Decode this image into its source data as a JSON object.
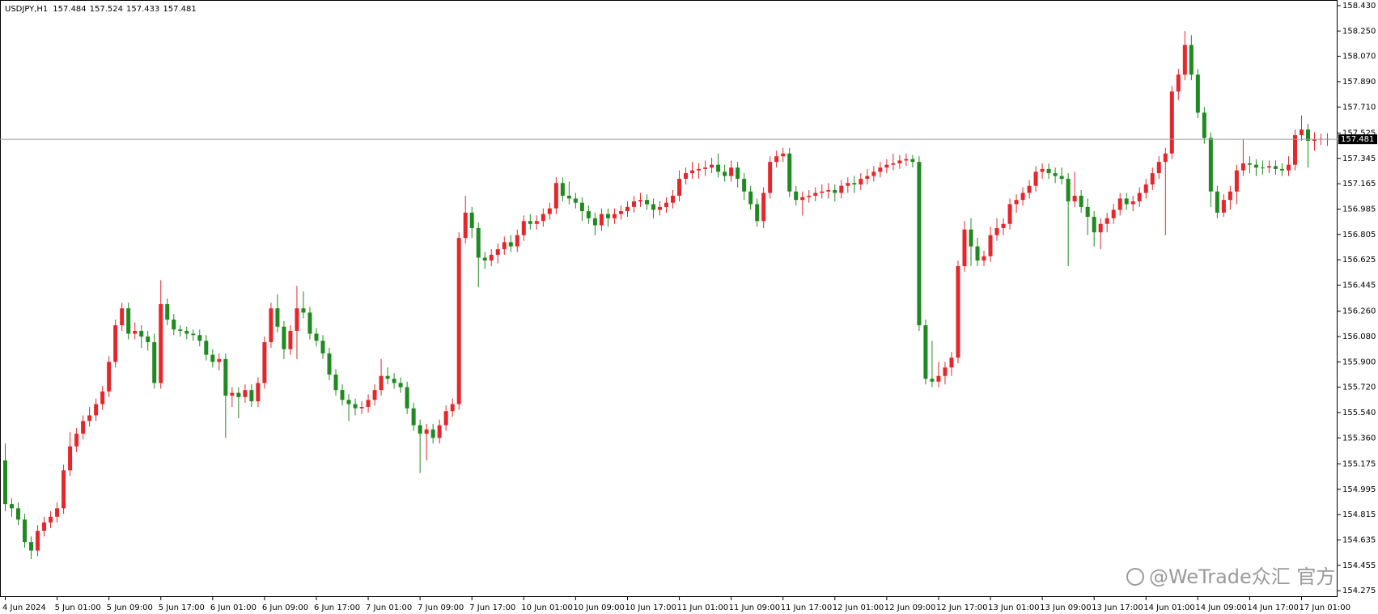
{
  "chart_data": {
    "type": "candlestick",
    "symbol": "USDJPY,H1",
    "watermark": "@WeTrade众汇 官方",
    "categories": [
      "4 Jun 2024",
      null,
      null,
      null,
      null,
      null,
      null,
      null,
      "5 Jun 01:00",
      null,
      null,
      null,
      null,
      null,
      null,
      null,
      "5 Jun 09:00",
      null,
      null,
      null,
      null,
      null,
      null,
      null,
      "5 Jun 17:00",
      null,
      null,
      null,
      null,
      null,
      null,
      null,
      "6 Jun 01:00",
      null,
      null,
      null,
      null,
      null,
      null,
      null,
      "6 Jun 09:00",
      null,
      null,
      null,
      null,
      null,
      null,
      null,
      "6 Jun 17:00",
      null,
      null,
      null,
      null,
      null,
      null,
      null,
      "7 Jun 01:00",
      null,
      null,
      null,
      null,
      null,
      null,
      null,
      "7 Jun 09:00",
      null,
      null,
      null,
      null,
      null,
      null,
      null,
      "7 Jun 17:00",
      null,
      null,
      null,
      null,
      null,
      null,
      null,
      "10 Jun 01:00",
      null,
      null,
      null,
      null,
      null,
      null,
      null,
      "10 Jun 09:00",
      null,
      null,
      null,
      null,
      null,
      null,
      null,
      "10 Jun 17:00",
      null,
      null,
      null,
      null,
      null,
      null,
      null,
      "11 Jun 01:00",
      null,
      null,
      null,
      null,
      null,
      null,
      null,
      "11 Jun 09:00",
      null,
      null,
      null,
      null,
      null,
      null,
      null,
      "11 Jun 17:00",
      null,
      null,
      null,
      null,
      null,
      null,
      null,
      "12 Jun 01:00",
      null,
      null,
      null,
      null,
      null,
      null,
      null,
      "12 Jun 09:00",
      null,
      null,
      null,
      null,
      null,
      null,
      null,
      "12 Jun 17:00",
      null,
      null,
      null,
      null,
      null,
      null,
      null,
      "13 Jun 01:00",
      null,
      null,
      null,
      null,
      null,
      null,
      null,
      "13 Jun 09:00",
      null,
      null,
      null,
      null,
      null,
      null,
      null,
      "13 Jun 17:00",
      null,
      null,
      null,
      null,
      null,
      null,
      null,
      "14 Jun 01:00",
      null,
      null,
      null,
      null,
      null,
      null,
      null,
      "14 Jun 09:00",
      null,
      null,
      null,
      null,
      null,
      null,
      null,
      "14 Jun 17:00",
      null,
      null,
      null,
      null,
      null,
      null,
      null,
      "17 Jun 01:00",
      null,
      null,
      null,
      null
    ],
    "open": [
      155.2,
      154.89,
      154.86,
      154.78,
      154.62,
      154.56,
      154.7,
      154.76,
      154.8,
      154.86,
      155.13,
      155.3,
      155.39,
      155.48,
      155.52,
      155.6,
      155.69,
      155.9,
      156.16,
      156.28,
      156.1,
      156.12,
      156.08,
      156.04,
      155.75,
      156.31,
      156.2,
      156.13,
      156.12,
      156.1,
      156.09,
      156.05,
      155.95,
      155.9,
      155.92,
      155.66,
      155.68,
      155.65,
      155.7,
      155.62,
      155.75,
      156.04,
      156.28,
      156.15,
      155.99,
      156.12,
      156.28,
      156.25,
      156.1,
      156.05,
      155.96,
      155.81,
      155.7,
      155.63,
      155.6,
      155.57,
      155.58,
      155.63,
      155.7,
      155.8,
      155.78,
      155.75,
      155.72,
      155.57,
      155.45,
      155.39,
      155.42,
      155.36,
      155.45,
      155.55,
      155.6,
      156.78,
      156.96,
      156.85,
      156.64,
      156.62,
      156.66,
      156.7,
      156.75,
      156.72,
      156.8,
      156.9,
      156.88,
      156.9,
      156.95,
      156.99,
      157.17,
      157.08,
      157.06,
      157.03,
      156.97,
      156.92,
      156.87,
      156.95,
      156.92,
      156.95,
      156.97,
      157.0,
      157.04,
      157.05,
      157.02,
      156.98,
      157.0,
      157.03,
      157.08,
      157.2,
      157.24,
      157.26,
      157.27,
      157.28,
      157.3,
      157.25,
      157.22,
      157.28,
      157.2,
      157.11,
      157.02,
      156.9,
      157.1,
      157.32,
      157.36,
      157.38,
      157.11,
      157.05,
      157.07,
      157.08,
      157.1,
      157.11,
      157.12,
      157.1,
      157.15,
      157.17,
      157.16,
      157.2,
      157.22,
      157.25,
      157.28,
      157.3,
      157.31,
      157.33,
      157.34,
      157.32,
      156.16,
      155.78,
      155.76,
      155.8,
      155.86,
      155.93,
      156.58,
      156.84,
      156.72,
      156.62,
      156.65,
      156.8,
      156.85,
      156.88,
      157.02,
      157.05,
      157.1,
      157.15,
      157.25,
      157.27,
      157.24,
      157.22,
      157.2,
      157.04,
      157.08,
      157.0,
      156.93,
      156.82,
      156.88,
      156.92,
      156.98,
      157.06,
      157.02,
      157.04,
      157.1,
      157.16,
      157.24,
      157.32,
      157.38,
      157.82,
      157.94,
      158.15,
      157.94,
      157.67,
      157.49,
      157.11,
      156.96,
      157.05,
      157.11,
      157.26,
      157.31,
      157.3,
      157.28,
      157.28,
      157.29,
      157.27,
      157.26,
      157.3,
      157.51,
      157.55,
      157.47,
      157.48,
      157.484
    ],
    "high": [
      155.32,
      154.93,
      154.9,
      154.82,
      154.66,
      154.74,
      154.8,
      154.84,
      154.9,
      155.17,
      155.4,
      155.43,
      155.52,
      155.58,
      155.64,
      155.73,
      155.94,
      156.2,
      156.32,
      156.32,
      156.18,
      156.16,
      156.12,
      156.1,
      156.48,
      156.35,
      156.24,
      156.16,
      156.15,
      156.13,
      156.13,
      156.09,
      155.99,
      155.96,
      155.96,
      155.72,
      155.72,
      155.74,
      155.74,
      155.79,
      156.08,
      156.32,
      156.38,
      156.19,
      156.16,
      156.44,
      156.4,
      156.29,
      156.14,
      156.09,
      156.0,
      155.85,
      155.74,
      155.67,
      155.64,
      155.62,
      155.67,
      155.74,
      155.92,
      155.86,
      155.82,
      155.79,
      155.76,
      155.61,
      155.49,
      155.46,
      155.46,
      155.49,
      155.59,
      155.64,
      156.82,
      157.08,
      157.0,
      156.89,
      156.68,
      156.7,
      156.74,
      156.79,
      156.8,
      156.84,
      156.94,
      156.95,
      156.94,
      156.99,
      157.03,
      157.21,
      157.21,
      157.18,
      157.1,
      157.07,
      157.01,
      156.96,
      156.99,
      156.99,
      156.99,
      157.01,
      157.04,
      157.08,
      157.1,
      157.09,
      157.06,
      157.04,
      157.07,
      157.12,
      157.26,
      157.28,
      157.32,
      157.31,
      157.33,
      157.35,
      157.38,
      157.3,
      157.33,
      157.32,
      157.24,
      157.15,
      157.06,
      157.14,
      157.36,
      157.4,
      157.42,
      157.42,
      157.15,
      157.11,
      157.12,
      157.14,
      157.16,
      157.17,
      157.16,
      157.19,
      157.21,
      157.22,
      157.24,
      157.27,
      157.29,
      157.32,
      157.34,
      157.38,
      157.37,
      157.38,
      157.37,
      157.36,
      156.2,
      156.05,
      155.9,
      155.9,
      155.97,
      156.62,
      156.9,
      156.92,
      156.78,
      156.69,
      156.86,
      156.92,
      156.92,
      157.06,
      157.09,
      157.14,
      157.19,
      157.29,
      157.31,
      157.31,
      157.28,
      157.28,
      157.24,
      157.25,
      157.12,
      157.06,
      156.97,
      156.92,
      156.96,
      157.02,
      157.1,
      157.1,
      157.08,
      157.14,
      157.2,
      157.28,
      157.36,
      157.42,
      157.86,
      157.98,
      158.25,
      158.22,
      157.98,
      157.71,
      157.53,
      157.15,
      157.09,
      157.15,
      157.3,
      157.48,
      157.36,
      157.34,
      157.33,
      157.33,
      157.33,
      157.31,
      157.36,
      157.55,
      157.65,
      157.59,
      157.53,
      157.52,
      157.524
    ],
    "low": [
      154.84,
      154.8,
      154.74,
      154.58,
      154.5,
      154.52,
      154.66,
      154.72,
      154.76,
      154.82,
      155.09,
      155.26,
      155.35,
      155.44,
      155.48,
      155.56,
      155.65,
      155.86,
      156.12,
      156.06,
      156.06,
      156.0,
      155.98,
      155.71,
      155.71,
      156.16,
      156.09,
      156.08,
      156.06,
      156.05,
      156.01,
      155.91,
      155.86,
      155.84,
      155.36,
      155.58,
      155.5,
      155.61,
      155.58,
      155.58,
      155.71,
      156.0,
      156.11,
      155.92,
      155.95,
      155.92,
      156.21,
      156.06,
      156.01,
      155.92,
      155.77,
      155.66,
      155.59,
      155.48,
      155.52,
      155.53,
      155.54,
      155.59,
      155.66,
      155.74,
      155.71,
      155.68,
      155.53,
      155.41,
      155.11,
      155.2,
      155.32,
      155.32,
      155.41,
      155.51,
      155.56,
      156.74,
      156.78,
      156.43,
      156.56,
      156.58,
      156.6,
      156.66,
      156.68,
      156.68,
      156.76,
      156.84,
      156.84,
      156.86,
      156.91,
      156.95,
      157.04,
      157.02,
      156.99,
      156.9,
      156.88,
      156.8,
      156.83,
      156.86,
      156.88,
      156.91,
      156.93,
      156.96,
      157.0,
      156.98,
      156.92,
      156.94,
      156.96,
      156.99,
      157.04,
      157.16,
      157.2,
      157.2,
      157.22,
      157.24,
      157.21,
      157.18,
      157.18,
      157.14,
      157.05,
      156.98,
      156.86,
      156.85,
      157.06,
      157.28,
      157.32,
      157.07,
      157.01,
      156.94,
      157.03,
      157.04,
      157.06,
      157.06,
      157.04,
      157.06,
      157.1,
      157.1,
      157.12,
      157.16,
      157.18,
      157.21,
      157.24,
      157.26,
      157.27,
      157.29,
      157.28,
      156.12,
      155.74,
      155.72,
      155.72,
      155.74,
      155.8,
      155.89,
      156.54,
      156.58,
      156.58,
      156.58,
      156.61,
      156.76,
      156.8,
      156.84,
      156.96,
      157.01,
      157.06,
      157.11,
      157.2,
      157.2,
      157.17,
      157.16,
      156.58,
      157.0,
      156.96,
      156.8,
      156.72,
      156.7,
      156.82,
      156.88,
      156.94,
      156.98,
      156.97,
      157.0,
      157.06,
      157.12,
      157.2,
      156.8,
      157.34,
      157.76,
      157.9,
      157.9,
      157.63,
      157.45,
      157.0,
      156.92,
      156.93,
      156.98,
      157.02,
      157.22,
      157.24,
      157.22,
      157.23,
      157.24,
      157.23,
      157.22,
      157.22,
      157.26,
      157.47,
      157.28,
      157.4,
      157.44,
      157.433
    ],
    "close": [
      154.89,
      154.86,
      154.78,
      154.62,
      154.56,
      154.7,
      154.76,
      154.8,
      154.86,
      155.13,
      155.3,
      155.39,
      155.48,
      155.52,
      155.6,
      155.69,
      155.9,
      156.16,
      156.28,
      156.1,
      156.12,
      156.08,
      156.04,
      155.75,
      156.31,
      156.2,
      156.13,
      156.12,
      156.1,
      156.09,
      156.05,
      155.95,
      155.9,
      155.92,
      155.66,
      155.68,
      155.65,
      155.7,
      155.62,
      155.75,
      156.04,
      156.28,
      156.15,
      155.99,
      156.12,
      156.28,
      156.25,
      156.1,
      156.05,
      155.96,
      155.81,
      155.7,
      155.63,
      155.6,
      155.57,
      155.58,
      155.63,
      155.7,
      155.8,
      155.78,
      155.75,
      155.72,
      155.57,
      155.45,
      155.39,
      155.42,
      155.36,
      155.45,
      155.55,
      155.6,
      156.78,
      156.96,
      156.85,
      156.64,
      156.62,
      156.66,
      156.7,
      156.75,
      156.72,
      156.8,
      156.9,
      156.88,
      156.9,
      156.95,
      156.99,
      157.17,
      157.08,
      157.06,
      157.03,
      156.97,
      156.92,
      156.87,
      156.95,
      156.92,
      156.95,
      156.97,
      157.0,
      157.04,
      157.05,
      157.02,
      156.98,
      157.0,
      157.03,
      157.08,
      157.2,
      157.24,
      157.26,
      157.27,
      157.28,
      157.3,
      157.25,
      157.22,
      157.28,
      157.2,
      157.11,
      157.02,
      156.9,
      157.1,
      157.32,
      157.36,
      157.38,
      157.11,
      157.05,
      157.07,
      157.08,
      157.1,
      157.11,
      157.12,
      157.1,
      157.15,
      157.17,
      157.16,
      157.2,
      157.22,
      157.25,
      157.28,
      157.3,
      157.31,
      157.33,
      157.34,
      157.32,
      156.16,
      155.78,
      155.76,
      155.8,
      155.86,
      155.93,
      156.58,
      156.84,
      156.72,
      156.62,
      156.65,
      156.8,
      156.85,
      156.88,
      157.02,
      157.05,
      157.1,
      157.15,
      157.25,
      157.27,
      157.24,
      157.22,
      157.2,
      157.04,
      157.08,
      157.0,
      156.93,
      156.82,
      156.88,
      156.92,
      156.98,
      157.06,
      157.02,
      157.04,
      157.1,
      157.16,
      157.24,
      157.32,
      157.38,
      157.82,
      157.94,
      158.15,
      157.94,
      157.67,
      157.49,
      157.11,
      156.96,
      157.05,
      157.11,
      157.26,
      157.31,
      157.3,
      157.28,
      157.28,
      157.29,
      157.27,
      157.26,
      157.3,
      157.51,
      157.55,
      157.47,
      157.48,
      157.484,
      157.481
    ],
    "up_color": "#e5262b",
    "down_color": "#1f8a1f",
    "ylim": [
      154.23,
      158.47
    ],
    "yticks": [
      {
        "value": 158.43,
        "label": "158.430"
      },
      {
        "value": 158.25,
        "label": "158.250"
      },
      {
        "value": 158.07,
        "label": "158.070"
      },
      {
        "value": 157.89,
        "label": "157.890"
      },
      {
        "value": 157.71,
        "label": "157.710"
      },
      157.525,
      157.345,
      157.165,
      156.985,
      156.805,
      156.625,
      156.445,
      {
        "value": 156.26,
        "label": "156.260"
      },
      {
        "value": 156.08,
        "label": "156.080"
      },
      {
        "value": 155.9,
        "label": "155.900"
      },
      {
        "value": 155.72,
        "label": "155.720"
      },
      {
        "value": 155.54,
        "label": "155.540"
      },
      {
        "value": 155.36,
        "label": "155.360"
      },
      155.175,
      154.995,
      154.815,
      154.635,
      154.455,
      154.275
    ],
    "grid": false
  }
}
